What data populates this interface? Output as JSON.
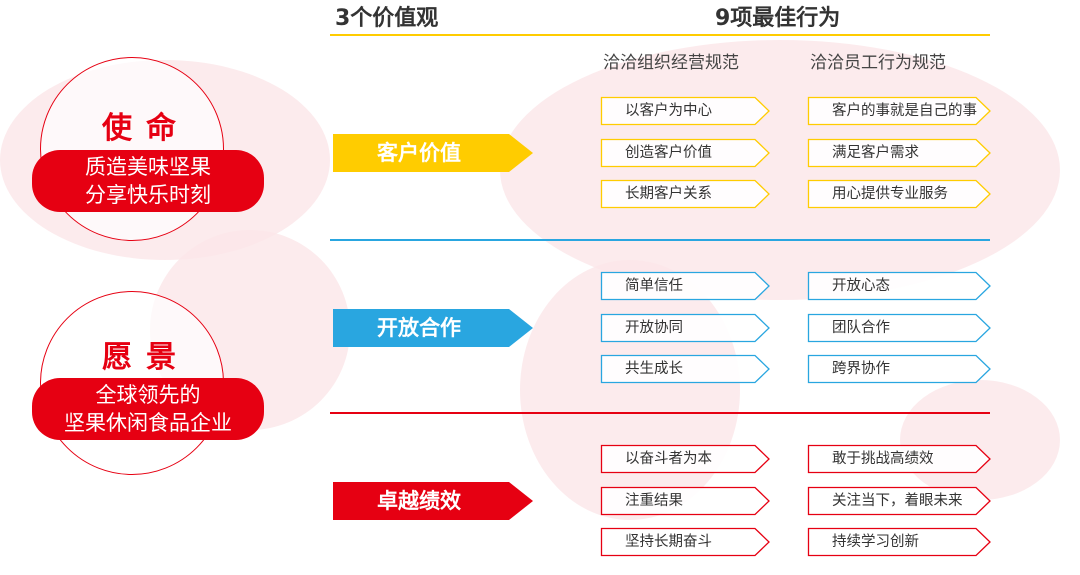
{
  "header": {
    "values_title": "3个价值观",
    "behaviors_title": "9项最佳行为",
    "col1": "洽洽组织经营规范",
    "col2": "洽洽员工行为规范"
  },
  "mission": {
    "title": "使命",
    "lines": [
      "质造美味坚果",
      "分享快乐时刻"
    ]
  },
  "vision": {
    "title": "愿景",
    "lines": [
      "全球领先的",
      "坚果休闲食品企业"
    ]
  },
  "colors": {
    "yellow": "#ffcc00",
    "blue": "#29a6e0",
    "red": "#e60012"
  },
  "values": [
    {
      "label": "客户价值",
      "color": "#ffcc00",
      "org": [
        "以客户为中心",
        "创造客户价值",
        "长期客户关系"
      ],
      "staff": [
        "客户的事就是自己的事",
        "满足客户需求",
        "用心提供专业服务"
      ]
    },
    {
      "label": "开放合作",
      "color": "#29a6e0",
      "org": [
        "简单信任",
        "开放协同",
        "共生成长"
      ],
      "staff": [
        "开放心态",
        "团队合作",
        "跨界协作"
      ]
    },
    {
      "label": "卓越绩效",
      "color": "#e60012",
      "org": [
        "以奋斗者为本",
        "注重结果",
        "坚持长期奋斗"
      ],
      "staff": [
        "敢于挑战高绩效",
        "关注当下，着眼未来",
        "持续学习创新"
      ]
    }
  ]
}
